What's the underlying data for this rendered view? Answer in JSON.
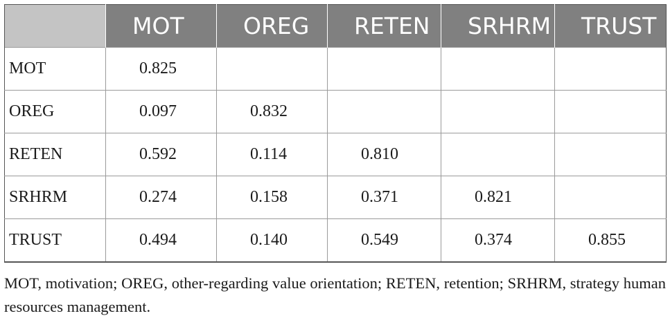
{
  "table": {
    "columns": [
      "MOT",
      "OREG",
      "RETEN",
      "SRHRM",
      "TRUST"
    ],
    "rows": [
      {
        "label": "MOT",
        "values": [
          "0.825",
          "",
          "",
          "",
          ""
        ]
      },
      {
        "label": "OREG",
        "values": [
          "0.097",
          "0.832",
          "",
          "",
          ""
        ]
      },
      {
        "label": "RETEN",
        "values": [
          "0.592",
          "0.114",
          "0.810",
          "",
          ""
        ]
      },
      {
        "label": "SRHRM",
        "values": [
          "0.274",
          "0.158",
          "0.371",
          "0.821",
          ""
        ]
      },
      {
        "label": "TRUST",
        "values": [
          "0.494",
          "0.140",
          "0.549",
          "0.374",
          "0.855"
        ]
      }
    ]
  },
  "footnote": "MOT, motivation; OREG, other-regarding value orientation; RETEN, retention; SRHRM, strategy human resources management."
}
